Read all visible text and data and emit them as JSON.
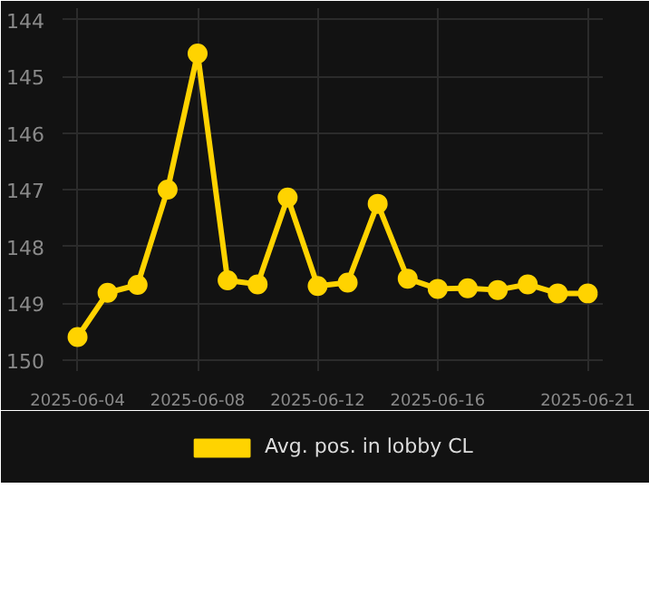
{
  "chart_data": {
    "type": "line",
    "x": [
      "2025-06-04",
      "2025-06-05",
      "2025-06-06",
      "2025-06-07",
      "2025-06-08",
      "2025-06-09",
      "2025-06-10",
      "2025-06-11",
      "2025-06-12",
      "2025-06-13",
      "2025-06-14",
      "2025-06-15",
      "2025-06-16",
      "2025-06-17",
      "2025-06-18",
      "2025-06-19",
      "2025-06-20",
      "2025-06-21"
    ],
    "series": [
      {
        "name": "Avg. pos. in lobby CL",
        "color": "#ffd300",
        "values": [
          149.6,
          148.82,
          148.68,
          147.0,
          144.6,
          148.6,
          148.67,
          147.14,
          148.7,
          148.64,
          147.25,
          148.57,
          148.75,
          148.74,
          148.77,
          148.67,
          148.83,
          148.83
        ]
      }
    ],
    "xlim": [
      "2025-06-03T12:00",
      "2025-06-21T12:00"
    ],
    "xticks": [
      "2025-06-04",
      "2025-06-08",
      "2025-06-12",
      "2025-06-16",
      "2025-06-21"
    ],
    "ylim": [
      150.2,
      143.8
    ],
    "yticks": [
      144,
      145,
      146,
      147,
      148,
      149,
      150
    ],
    "grid": true,
    "legend": "bottom",
    "marker": "circle",
    "line_style": "solid"
  }
}
